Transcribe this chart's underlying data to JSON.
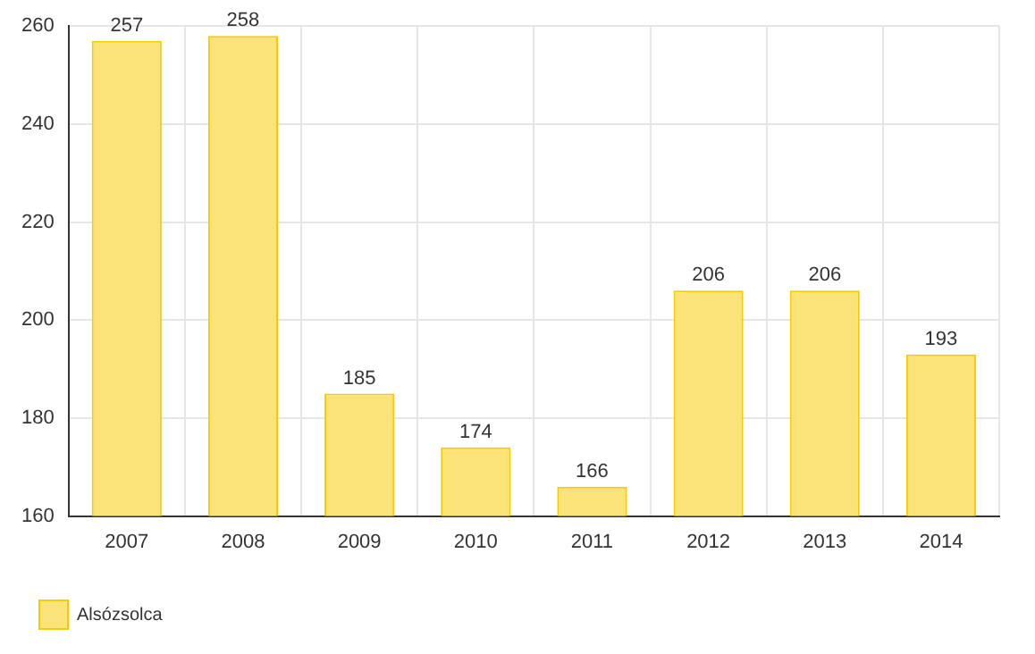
{
  "chart_data": {
    "type": "bar",
    "categories": [
      "2007",
      "2008",
      "2009",
      "2010",
      "2011",
      "2012",
      "2013",
      "2014"
    ],
    "series": [
      {
        "name": "Alsózsolca",
        "color": "#fbe37a",
        "values": [
          257,
          258,
          185,
          174,
          166,
          206,
          206,
          193
        ]
      }
    ],
    "ylim": [
      160,
      260
    ],
    "yticks": [
      160,
      180,
      200,
      220,
      240,
      260
    ],
    "grid": true,
    "legend": "bottom left",
    "data_labels": true
  }
}
